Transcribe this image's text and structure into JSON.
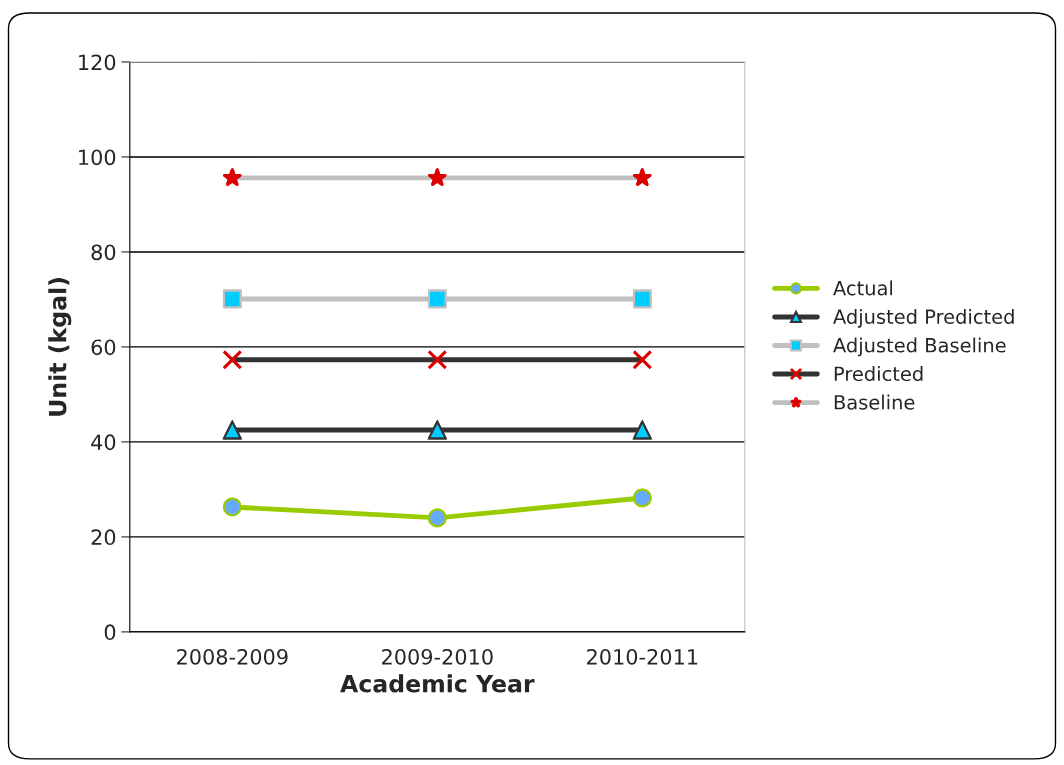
{
  "chart_data": {
    "type": "line",
    "xlabel": "Academic Year",
    "ylabel": "Unit (kgal)",
    "categories": [
      "2008-2009",
      "2009-2010",
      "2010-2011"
    ],
    "series": [
      {
        "name": "Actual",
        "color": "#99cc00",
        "marker": "circle",
        "colors": [
          "#66aaff",
          "#66aaff",
          "#66aaff"
        ],
        "values": [
          26.3,
          24.0,
          28.2
        ]
      },
      {
        "name": "Adjusted Predicted",
        "color": "#333333",
        "marker": "triangle",
        "colors": [
          "#00ccff",
          "#00ccff",
          "#00ccff"
        ],
        "values": [
          42.5,
          42.5,
          42.5
        ]
      },
      {
        "name": "Adjusted Baseline",
        "color": "#c0c0c0",
        "marker": "square",
        "colors": [
          "#00ccff",
          "#00ccff",
          "#00ccff"
        ],
        "values": [
          70.1,
          70.1,
          70.1
        ]
      },
      {
        "name": "Predicted",
        "color": "#333333",
        "marker": "cross",
        "colors": [
          "#dd0000",
          "#dd0000",
          "#dd0000"
        ],
        "values": [
          57.3,
          57.3,
          57.3
        ]
      },
      {
        "name": "Baseline",
        "color": "#c0c0c0",
        "marker": "star",
        "colors": [
          "#dd0000",
          "#dd0000",
          "#dd0000"
        ],
        "values": [
          95.6,
          95.6,
          95.6
        ]
      }
    ],
    "ylim": [
      0,
      120
    ],
    "yticks": [
      0,
      20,
      40,
      60,
      80,
      100,
      120
    ],
    "grid": "y",
    "legend": "right"
  }
}
